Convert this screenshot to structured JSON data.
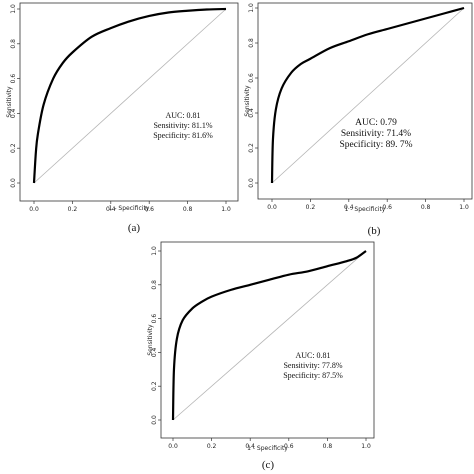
{
  "chart_data": [
    {
      "type": "line",
      "panel": "a",
      "caption": "(a)",
      "xlabel": "1 - Specificity",
      "ylabel": "Sensitivity",
      "xlim": [
        0,
        1
      ],
      "ylim": [
        0,
        1
      ],
      "xticks": [
        "0.0",
        "0.2",
        "0.4",
        "0.6",
        "0.8",
        "1.0"
      ],
      "yticks": [
        "0.0",
        "0.2",
        "0.4",
        "0.6",
        "0.8",
        "1.0"
      ],
      "grid": false,
      "reference_line": [
        [
          0,
          0
        ],
        [
          1,
          1
        ]
      ],
      "series": [
        {
          "x": [
            0,
            0.01,
            0.02,
            0.05,
            0.1,
            0.15,
            0.2,
            0.3,
            0.4,
            0.5,
            0.6,
            0.7,
            0.8,
            0.9,
            1.0
          ],
          "y": [
            0,
            0.18,
            0.28,
            0.45,
            0.6,
            0.69,
            0.75,
            0.84,
            0.89,
            0.93,
            0.96,
            0.98,
            0.99,
            0.997,
            1.0
          ]
        }
      ],
      "annotations": [
        "AUC: 0.81",
        "Sensitivity: 81.1%",
        "Specificity: 81.6%"
      ]
    },
    {
      "type": "line",
      "panel": "b",
      "caption": "(b)",
      "xlabel": "1 - Specificity",
      "ylabel": "Sensitivity",
      "xlim": [
        0,
        1
      ],
      "ylim": [
        0,
        1
      ],
      "xticks": [
        "0.0",
        "0.2",
        "0.4",
        "0.6",
        "0.8",
        "1.0"
      ],
      "yticks": [
        "0.0",
        "0.2",
        "0.4",
        "0.6",
        "0.8",
        "1.0"
      ],
      "grid": false,
      "reference_line": [
        [
          0,
          0
        ],
        [
          1,
          1
        ]
      ],
      "series": [
        {
          "x": [
            0,
            0.005,
            0.02,
            0.05,
            0.1,
            0.15,
            0.2,
            0.3,
            0.4,
            0.5,
            0.6,
            0.7,
            0.8,
            0.9,
            1.0
          ],
          "y": [
            0,
            0.25,
            0.42,
            0.54,
            0.63,
            0.68,
            0.71,
            0.77,
            0.81,
            0.85,
            0.88,
            0.91,
            0.94,
            0.97,
            1.0
          ]
        }
      ],
      "annotations": [
        "AUC: 0.79",
        "Sensitivity: 71.4%",
        "Specificity: 89. 7%"
      ]
    },
    {
      "type": "line",
      "panel": "c",
      "caption": "(c)",
      "xlabel": "1 - Specificity",
      "ylabel": "Sensitivity",
      "xlim": [
        0,
        1
      ],
      "ylim": [
        0,
        1
      ],
      "xticks": [
        "0.0",
        "0.2",
        "0.4",
        "0.6",
        "0.8",
        "1.0"
      ],
      "yticks": [
        "0.0",
        "0.2",
        "0.4",
        "0.6",
        "0.8",
        "1.0"
      ],
      "grid": false,
      "reference_line": [
        [
          0,
          0
        ],
        [
          1,
          1
        ]
      ],
      "series": [
        {
          "x": [
            0,
            0.005,
            0.02,
            0.05,
            0.1,
            0.15,
            0.2,
            0.3,
            0.4,
            0.5,
            0.6,
            0.7,
            0.8,
            0.9,
            0.95,
            1.0
          ],
          "y": [
            0,
            0.3,
            0.48,
            0.59,
            0.66,
            0.7,
            0.73,
            0.77,
            0.8,
            0.83,
            0.86,
            0.88,
            0.91,
            0.94,
            0.96,
            1.0
          ]
        }
      ],
      "annotations": [
        "AUC: 0.81",
        "Sensitivity: 77.8%",
        "Specificity: 87.5%"
      ]
    }
  ]
}
